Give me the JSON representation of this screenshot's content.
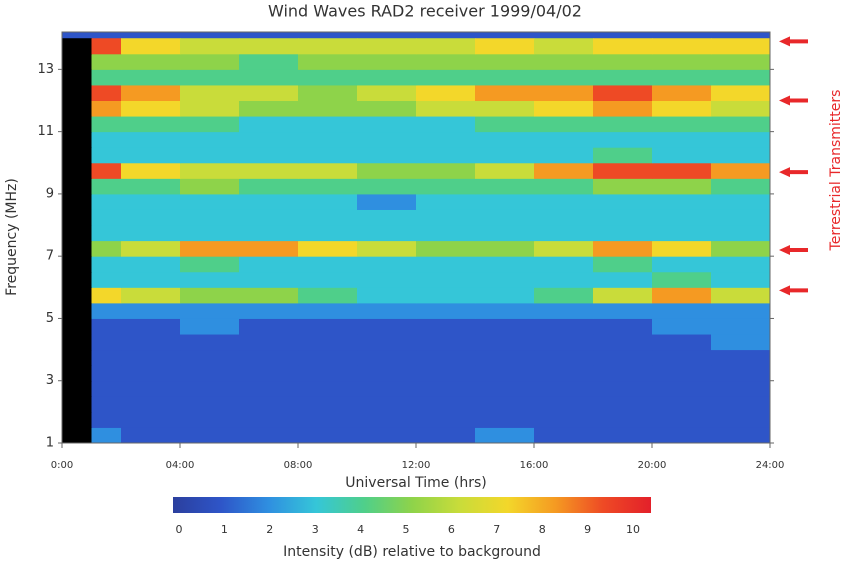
{
  "chart_data": {
    "type": "heatmap",
    "title": "Wind Waves RAD2 receiver 1999/04/02",
    "xlabel": "Universal Time (hrs)",
    "ylabel": "Frequency (MHz)",
    "xlim": [
      0,
      24
    ],
    "ylim": [
      1,
      14.2
    ],
    "xticks": [
      {
        "value": 0,
        "label": "0:00"
      },
      {
        "value": 4,
        "label": "04:00"
      },
      {
        "value": 8,
        "label": "08:00"
      },
      {
        "value": 12,
        "label": "12:00"
      },
      {
        "value": 16,
        "label": "16:00"
      },
      {
        "value": 20,
        "label": "20:00"
      },
      {
        "value": 24,
        "label": "24:00"
      }
    ],
    "yticks": [
      1,
      3,
      5,
      7,
      9,
      11,
      13
    ],
    "xbins": [
      0,
      1,
      2,
      4,
      6,
      8,
      10,
      12,
      14,
      16,
      18,
      20,
      22,
      24
    ],
    "ybins": [
      1,
      1.5,
      2,
      2.5,
      3,
      3.5,
      4,
      4.5,
      5,
      5.5,
      6,
      6.5,
      7,
      7.5,
      8,
      8.5,
      9,
      9.5,
      10,
      10.5,
      11,
      11.5,
      12,
      12.5,
      13,
      13.5,
      14
    ],
    "values": [
      [
        null,
        2,
        1,
        1,
        1,
        1,
        1,
        1,
        2,
        1,
        1,
        1,
        1
      ],
      [
        null,
        1,
        1,
        1,
        1,
        1,
        1,
        1,
        1,
        1,
        1,
        1,
        1
      ],
      [
        null,
        1,
        1,
        1,
        1,
        1,
        1,
        1,
        1,
        1,
        1,
        1,
        1
      ],
      [
        null,
        1,
        1,
        1,
        1,
        1,
        1,
        1,
        1,
        1,
        1,
        1,
        1
      ],
      [
        null,
        1,
        1,
        1,
        1,
        1,
        1,
        1,
        1,
        1,
        1,
        1,
        1
      ],
      [
        null,
        1,
        1,
        1,
        1,
        1,
        1,
        1,
        1,
        1,
        1,
        1,
        1
      ],
      [
        null,
        1,
        1,
        1,
        1,
        1,
        1,
        1,
        1,
        1,
        1,
        1,
        2
      ],
      [
        null,
        1,
        1,
        2,
        1,
        1,
        1,
        1,
        1,
        1,
        1,
        2,
        2
      ],
      [
        null,
        2,
        2,
        2,
        2,
        2,
        2,
        2,
        2,
        2,
        2,
        2,
        2
      ],
      [
        null,
        7,
        6,
        5,
        5,
        4,
        3,
        3,
        3,
        4,
        6,
        8,
        6
      ],
      [
        null,
        3,
        3,
        3,
        3,
        3,
        3,
        3,
        3,
        3,
        3,
        4,
        3
      ],
      [
        null,
        3,
        3,
        4,
        3,
        3,
        3,
        3,
        3,
        3,
        4,
        3,
        3
      ],
      [
        null,
        5,
        6,
        8,
        8,
        7,
        6,
        5,
        5,
        6,
        8,
        7,
        5
      ],
      [
        null,
        3,
        3,
        3,
        3,
        3,
        3,
        3,
        3,
        3,
        3,
        3,
        3
      ],
      [
        null,
        3,
        3,
        3,
        3,
        3,
        3,
        3,
        3,
        3,
        3,
        3,
        3
      ],
      [
        null,
        3,
        3,
        3,
        3,
        3,
        2,
        3,
        3,
        3,
        3,
        3,
        3
      ],
      [
        null,
        4,
        4,
        5,
        4,
        4,
        4,
        4,
        4,
        4,
        5,
        5,
        4
      ],
      [
        null,
        9,
        7,
        6,
        6,
        6,
        5,
        5,
        6,
        8,
        9,
        9,
        8
      ],
      [
        null,
        3,
        3,
        3,
        3,
        3,
        3,
        3,
        3,
        3,
        4,
        3,
        3
      ],
      [
        null,
        3,
        3,
        3,
        3,
        3,
        3,
        3,
        3,
        3,
        3,
        3,
        3
      ],
      [
        null,
        4,
        4,
        4,
        3,
        3,
        3,
        3,
        4,
        4,
        4,
        4,
        4
      ],
      [
        null,
        8,
        7,
        6,
        5,
        5,
        5,
        6,
        6,
        7,
        8,
        7,
        6
      ],
      [
        null,
        9,
        8,
        6,
        6,
        5,
        6,
        7,
        8,
        8,
        9,
        8,
        7
      ],
      [
        null,
        4,
        4,
        4,
        4,
        4,
        4,
        4,
        4,
        4,
        4,
        4,
        4
      ],
      [
        null,
        5,
        5,
        5,
        4,
        5,
        5,
        5,
        5,
        5,
        5,
        5,
        5
      ],
      [
        null,
        9,
        7,
        6,
        6,
        6,
        6,
        6,
        7,
        6,
        7,
        7,
        7
      ]
    ],
    "colorbar": {
      "label": "Intensity (dB) relative to background",
      "ticks": [
        0,
        1,
        2,
        3,
        4,
        5,
        6,
        7,
        8,
        9,
        10
      ],
      "colors": [
        "#2b3f9e",
        "#2e55c8",
        "#2f8fe0",
        "#35c6d8",
        "#4fcf8a",
        "#8ed34a",
        "#c9dc3a",
        "#f3d72a",
        "#f59a22",
        "#ee4a25",
        "#e3202a"
      ]
    },
    "annotation": {
      "text": "Terrestrial Transmitters",
      "color": "#e8282a",
      "arrows_at": [
        13.9,
        12,
        9.7,
        7.2,
        5.9
      ]
    }
  }
}
